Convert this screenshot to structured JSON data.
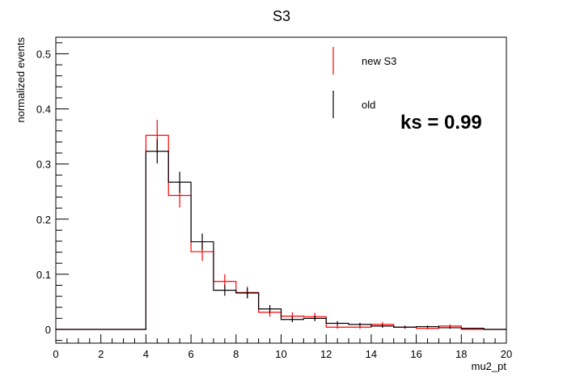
{
  "chart_data": {
    "type": "histogram",
    "title": "S3",
    "xlabel": "mu2_pt",
    "ylabel": "normalized events",
    "xlim": [
      0,
      20
    ],
    "ylim": [
      -0.025,
      0.53
    ],
    "x_ticks": [
      "0",
      "2",
      "4",
      "6",
      "8",
      "10",
      "12",
      "14",
      "16",
      "18",
      "20"
    ],
    "y_ticks": [
      "0",
      "0.1",
      "0.2",
      "0.3",
      "0.4",
      "0.5"
    ],
    "bin_edges": [
      0,
      1,
      2,
      3,
      4,
      5,
      6,
      7,
      8,
      9,
      10,
      11,
      12,
      13,
      14,
      15,
      16,
      17,
      18,
      19,
      20
    ],
    "series": [
      {
        "name": "new S3",
        "color": "#ff0000",
        "values": [
          0,
          0,
          0,
          0,
          0.352,
          0.243,
          0.141,
          0.087,
          0.067,
          0.031,
          0.024,
          0.023,
          0.004,
          0.004,
          0.009,
          0.004,
          0.002,
          0.006,
          0.0,
          0.0
        ],
        "errors": [
          0,
          0,
          0,
          0,
          0.028,
          0.022,
          0.017,
          0.013,
          0.011,
          0.008,
          0.007,
          0.007,
          0.003,
          0.003,
          0.004,
          0.003,
          0.002,
          0.003,
          0,
          0
        ]
      },
      {
        "name": "old",
        "color": "#000000",
        "values": [
          0,
          0,
          0,
          0,
          0.323,
          0.267,
          0.159,
          0.071,
          0.066,
          0.037,
          0.018,
          0.02,
          0.011,
          0.009,
          0.006,
          0.004,
          0.005,
          0.003,
          0.002,
          0.0
        ],
        "errors": [
          0,
          0,
          0,
          0,
          0.022,
          0.019,
          0.015,
          0.01,
          0.009,
          0.007,
          0.005,
          0.005,
          0.004,
          0.003,
          0.003,
          0.002,
          0.002,
          0.002,
          0.001,
          0
        ]
      }
    ],
    "legend_position": "top-right",
    "annotation": "ks = 0.99"
  }
}
